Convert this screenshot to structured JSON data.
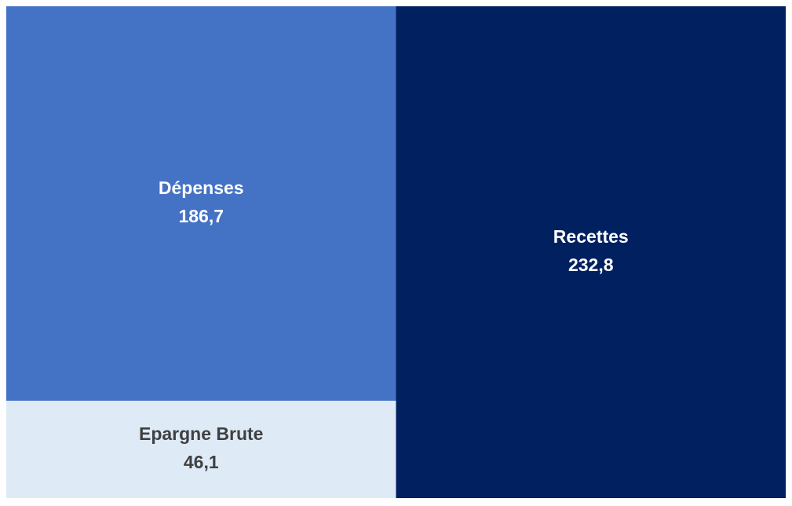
{
  "chart_data": {
    "type": "stacked_bar",
    "categories": [
      null,
      null
    ],
    "series": [
      {
        "name": "Epargne Brute",
        "color": "#deebf7",
        "label_color": "#404040",
        "values": [
          46.1,
          null
        ],
        "value_labels": [
          "46,1",
          null
        ]
      },
      {
        "name": "Dépenses",
        "color": "#4472c4",
        "label_color": "#ffffff",
        "values": [
          186.7,
          null
        ],
        "value_labels": [
          "186,7",
          null
        ]
      },
      {
        "name": "Recettes",
        "color": "#002060",
        "label_color": "#ffffff",
        "values": [
          null,
          232.8
        ],
        "value_labels": [
          null,
          "232,8"
        ]
      }
    ],
    "ylim": [
      0,
      232.8
    ]
  }
}
